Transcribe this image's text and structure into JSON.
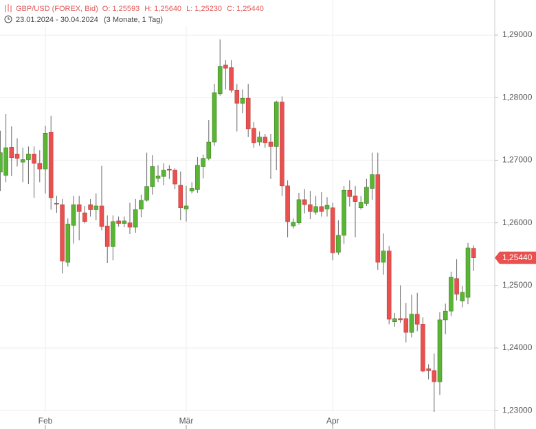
{
  "chart_data": {
    "type": "candlestick",
    "title": "GBP/USD (FOREX, Bid)",
    "ohlc_labels": [
      "O: 1,25593",
      "H: 1,25640",
      "L: 1,25230",
      "C: 1,25440"
    ],
    "subtitle": "23.01.2024 - 30.04.2024",
    "period": "(3 Monate, 1 Tag)",
    "categories": [
      null,
      null,
      null,
      null,
      null,
      null,
      null,
      null,
      "Feb",
      null,
      null,
      null,
      null,
      null,
      null,
      null,
      null,
      null,
      null,
      null,
      null,
      null,
      null,
      null,
      null,
      null,
      null,
      null,
      null,
      null,
      null,
      null,
      null,
      "Mär",
      null,
      null,
      null,
      null,
      null,
      null,
      null,
      null,
      null,
      null,
      null,
      null,
      null,
      null,
      null,
      null,
      null,
      null,
      null,
      null,
      null,
      null,
      null,
      null,
      null,
      "Apr",
      null,
      null,
      null,
      null,
      null,
      null,
      null,
      null,
      null,
      null,
      null,
      null,
      null,
      null,
      null,
      null,
      null,
      null,
      null,
      null,
      null,
      null,
      null,
      null,
      null
    ],
    "open": [
      1.2681,
      1.2676,
      1.2721,
      1.271,
      1.2697,
      1.2701,
      1.271,
      1.2695,
      1.2686,
      1.2745,
      1.2631,
      1.2629,
      1.2537,
      1.2596,
      1.2629,
      1.2616,
      1.2629,
      1.2621,
      1.2627,
      1.2595,
      1.2562,
      1.2603,
      1.2599,
      1.26,
      1.2593,
      1.2622,
      1.2636,
      1.2658,
      1.2671,
      1.2674,
      1.2686,
      1.2684,
      1.266,
      1.2622,
      1.2651,
      1.2653,
      1.269,
      1.2703,
      1.2729,
      1.2806,
      1.2852,
      1.2848,
      1.2812,
      1.2791,
      1.2799,
      1.2751,
      1.2729,
      1.2737,
      1.2729,
      1.2722,
      1.2793,
      1.2659,
      1.2595,
      1.26,
      1.2637,
      1.2629,
      1.2617,
      1.2626,
      1.2622,
      1.2624,
      1.2553,
      1.258,
      1.2652,
      1.2643,
      1.2624,
      1.2631,
      1.2655,
      1.2677,
      1.2537,
      1.2555,
      1.2442,
      1.2447,
      1.2447,
      1.2425,
      1.2454,
      1.2438,
      1.2367,
      1.2364,
      1.2346,
      1.2445,
      1.2459,
      1.2511,
      1.2475,
      1.2481,
      1.25593
    ],
    "high": [
      1.2747,
      1.2774,
      1.2754,
      1.2735,
      1.272,
      1.2722,
      1.2722,
      1.2716,
      1.2755,
      1.2771,
      1.2643,
      1.2638,
      1.2607,
      1.2643,
      1.2643,
      1.2627,
      1.2638,
      1.2647,
      1.2691,
      1.2612,
      1.2612,
      1.261,
      1.261,
      1.2632,
      1.2638,
      1.2645,
      1.2712,
      1.2708,
      1.2692,
      1.2695,
      1.2692,
      1.2687,
      1.2682,
      1.2659,
      1.2665,
      1.2705,
      1.2709,
      1.2764,
      1.2822,
      1.2893,
      1.286,
      1.286,
      1.2822,
      1.2813,
      1.2822,
      1.2761,
      1.2746,
      1.2742,
      1.2742,
      1.2795,
      1.2802,
      1.2668,
      1.2607,
      1.2648,
      1.2654,
      1.2651,
      1.2643,
      1.2649,
      1.2641,
      1.2632,
      1.2604,
      1.2659,
      1.2668,
      1.2659,
      1.2643,
      1.267,
      1.2712,
      1.2712,
      1.2583,
      1.2563,
      1.2456,
      1.25,
      1.2472,
      1.2485,
      1.2488,
      1.2449,
      1.2374,
      1.2391,
      1.2457,
      1.2471,
      1.2522,
      1.2542,
      1.2499,
      1.2568,
      1.2564
    ],
    "low": [
      1.2651,
      1.2665,
      1.2675,
      1.269,
      1.2665,
      1.2662,
      1.264,
      1.2665,
      1.2647,
      1.2621,
      1.2616,
      1.2519,
      1.253,
      1.2567,
      1.2572,
      1.2599,
      1.261,
      1.2604,
      1.2588,
      1.2536,
      1.254,
      1.2594,
      1.2593,
      1.2582,
      1.2584,
      1.2609,
      1.2634,
      1.2645,
      1.2665,
      1.266,
      1.267,
      1.2654,
      1.2604,
      1.2602,
      1.2647,
      1.2648,
      1.2671,
      1.27,
      1.2723,
      1.2803,
      1.2813,
      1.2808,
      1.2746,
      1.2775,
      1.2737,
      1.272,
      1.2723,
      1.272,
      1.267,
      1.2684,
      1.2643,
      1.2577,
      1.2591,
      1.2597,
      1.2615,
      1.2606,
      1.2613,
      1.261,
      1.261,
      1.254,
      1.2549,
      1.2566,
      1.2626,
      1.2577,
      1.2621,
      1.2627,
      1.2637,
      1.2525,
      1.2517,
      1.2438,
      1.2434,
      1.244,
      1.2409,
      1.2417,
      1.2427,
      1.2361,
      1.235,
      1.2298,
      1.2325,
      1.2422,
      1.2451,
      1.2476,
      1.2465,
      1.247,
      1.2523
    ],
    "close": [
      1.2712,
      1.272,
      1.2704,
      1.2703,
      1.2701,
      1.271,
      1.2695,
      1.2686,
      1.2743,
      1.264,
      1.263,
      1.2539,
      1.2598,
      1.2629,
      1.2618,
      1.2602,
      1.2621,
      1.2627,
      1.2594,
      1.2562,
      1.2602,
      1.2599,
      1.2603,
      1.2593,
      1.2621,
      1.2636,
      1.2658,
      1.269,
      1.2675,
      1.2684,
      1.2684,
      1.2662,
      1.2624,
      1.2627,
      1.2655,
      1.2692,
      1.2703,
      1.2729,
      1.2808,
      1.285,
      1.2847,
      1.2812,
      1.2791,
      1.2799,
      1.275,
      1.2728,
      1.2737,
      1.2728,
      1.2722,
      1.2793,
      1.2659,
      1.2602,
      1.2601,
      1.2637,
      1.2629,
      1.2618,
      1.2626,
      1.2618,
      1.2628,
      1.2552,
      1.258,
      1.2652,
      1.2642,
      1.2634,
      1.2633,
      1.2657,
      1.2677,
      1.2537,
      1.2555,
      1.2446,
      1.2447,
      1.2445,
      1.2425,
      1.2454,
      1.2438,
      1.2363,
      1.2364,
      1.2346,
      1.2445,
      1.2459,
      1.2513,
      1.2486,
      1.2489,
      1.256,
      1.2544
    ],
    "up_color": "#5bb534",
    "down_color": "#e8514f",
    "last_price": {
      "value": 1.2544,
      "label": "1,25440"
    },
    "ylim": [
      1.2298,
      1.2956
    ],
    "yticks": [
      {
        "value": 1.23,
        "label": "1,23000"
      },
      {
        "value": 1.24,
        "label": "1,24000"
      },
      {
        "value": 1.25,
        "label": "1,25000"
      },
      {
        "value": 1.26,
        "label": "1,26000"
      },
      {
        "value": 1.27,
        "label": "1,27000"
      },
      {
        "value": 1.28,
        "label": "1,28000"
      },
      {
        "value": 1.29,
        "label": "1,29000"
      }
    ],
    "grid": true
  }
}
